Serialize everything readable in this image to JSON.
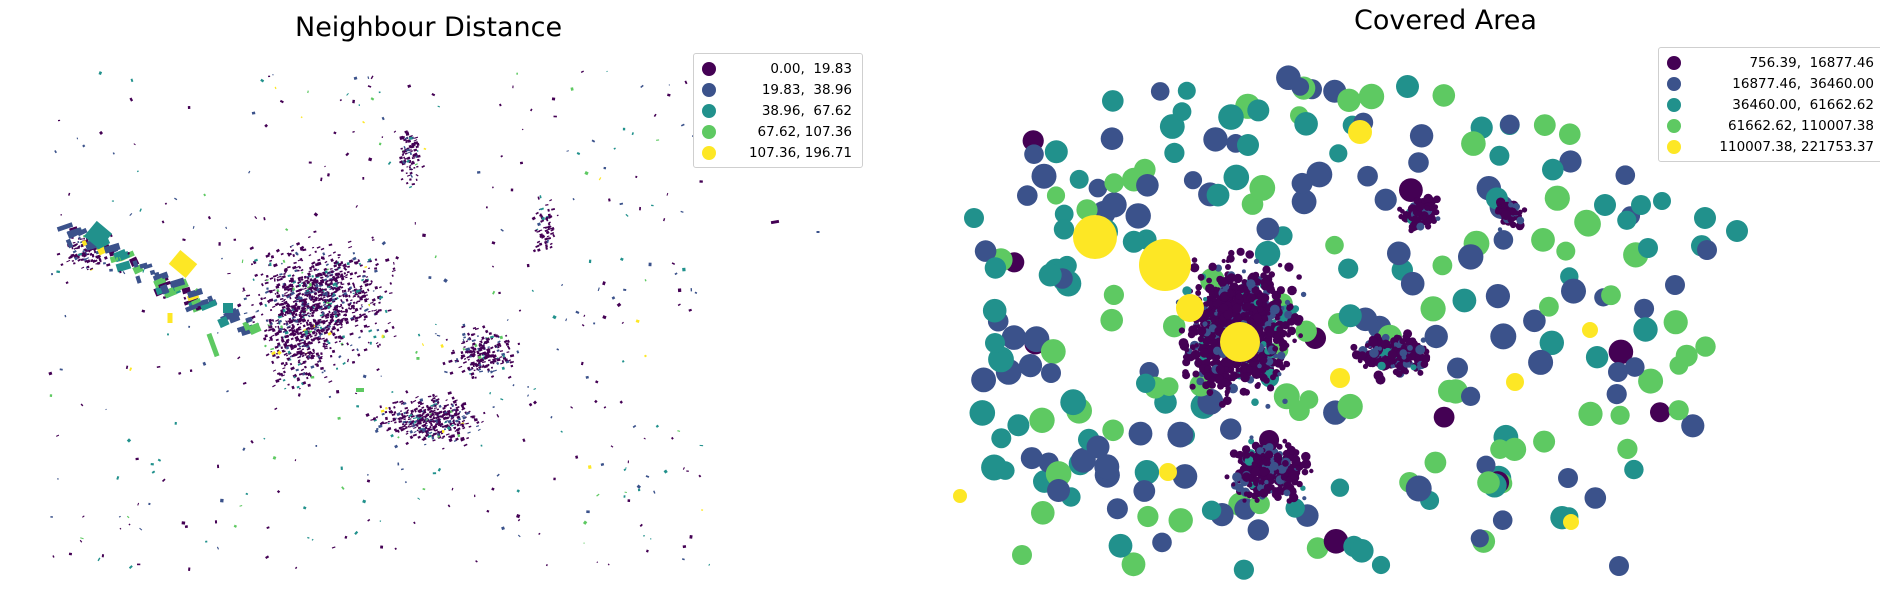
{
  "colors": {
    "c0": "#440154",
    "c1": "#3b528b",
    "c2": "#21918c",
    "c3": "#5ec962",
    "c4": "#fde725"
  },
  "left_map": {
    "title": "Neighbour Distance",
    "legend": [
      {
        "label": "0.00,  19.83",
        "color": "#440154"
      },
      {
        "label": "19.83,  38.96",
        "color": "#3b528b"
      },
      {
        "label": "38.96,  67.62",
        "color": "#21918c"
      },
      {
        "label": "67.62, 107.36",
        "color": "#5ec962"
      },
      {
        "label": "107.36, 196.71",
        "color": "#fde725"
      }
    ]
  },
  "right_map": {
    "title": "Covered Area",
    "legend": [
      {
        "label": "756.39,  16877.46",
        "color": "#440154"
      },
      {
        "label": "16877.46,  36460.00",
        "color": "#3b528b"
      },
      {
        "label": "36460.00,  61662.62",
        "color": "#21918c"
      },
      {
        "label": "61662.62, 110007.38",
        "color": "#5ec962"
      },
      {
        "label": "110007.38, 221753.37",
        "color": "#fde725"
      }
    ]
  }
}
